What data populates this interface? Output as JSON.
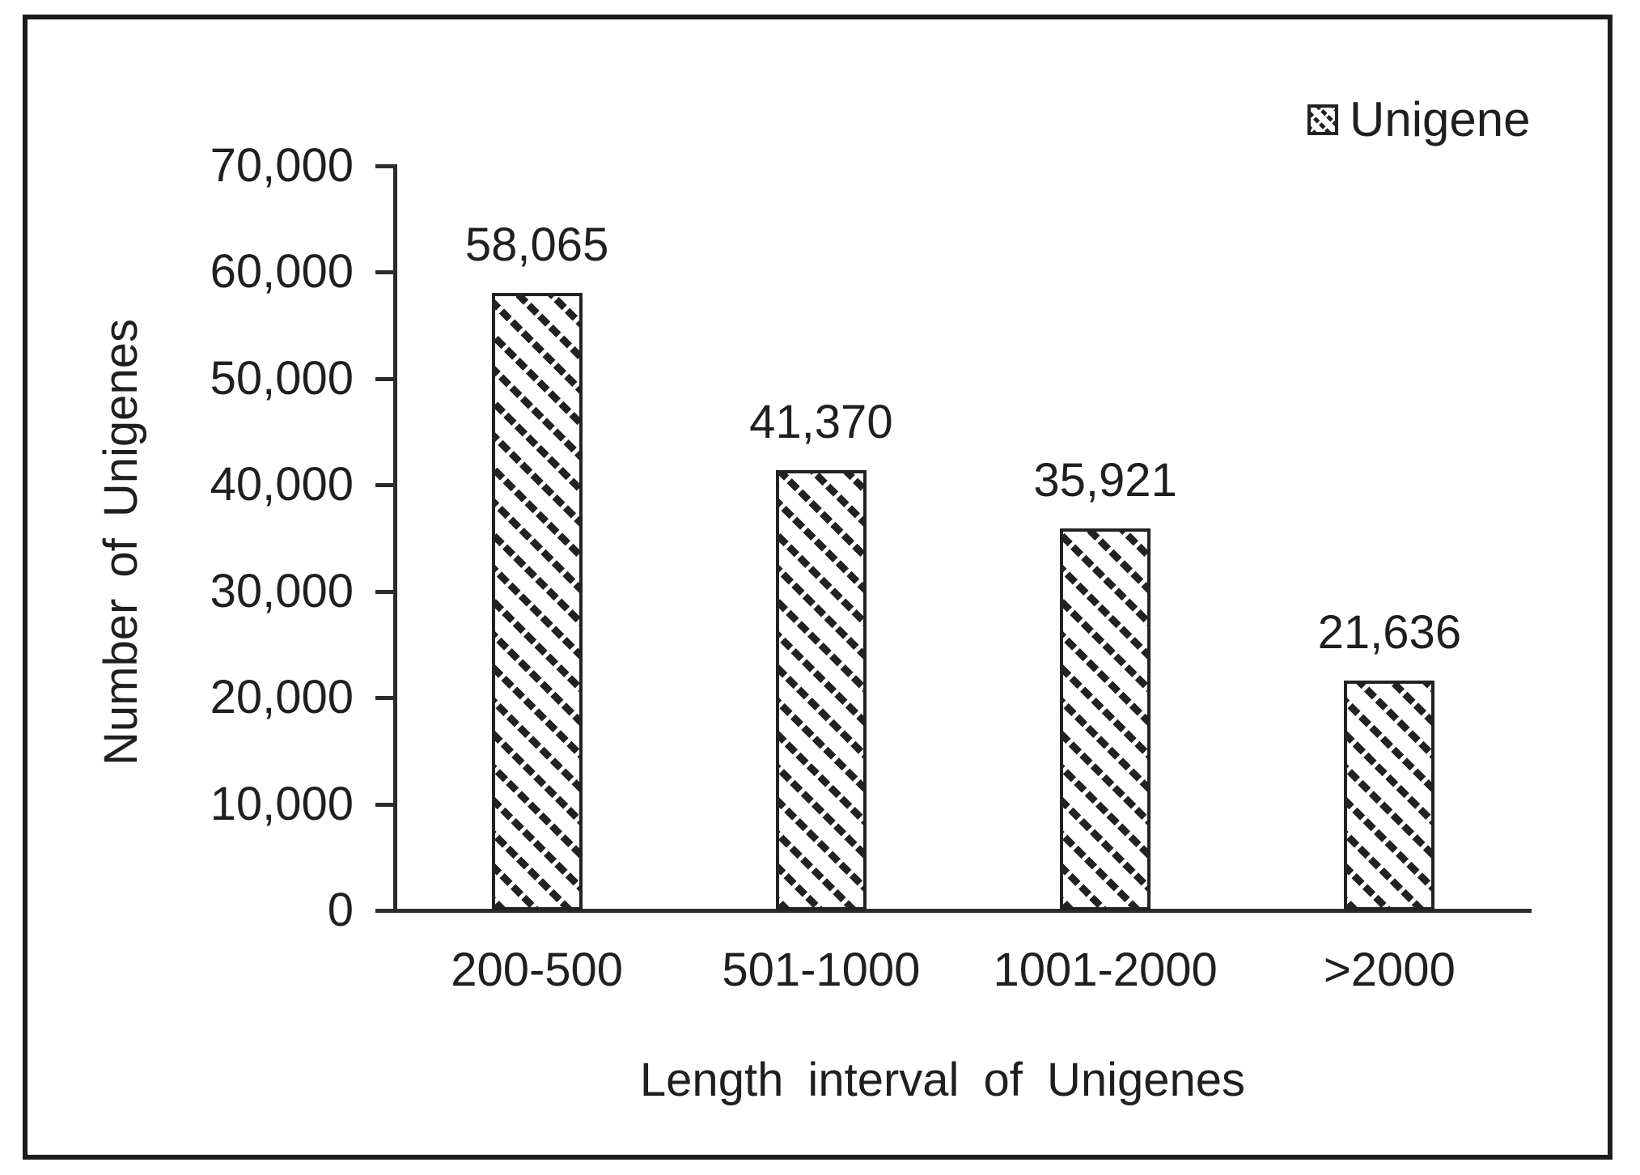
{
  "chart_data": {
    "type": "bar",
    "categories": [
      "200-500",
      "501-1000",
      "1001-2000",
      ">2000"
    ],
    "series": [
      {
        "name": "Unigene",
        "values": [
          58065,
          41370,
          35921,
          21636
        ]
      }
    ],
    "value_labels": [
      "58,065",
      "41,370",
      "35,921",
      "21,636"
    ],
    "xlabel": "Length interval  of Unigenes",
    "ylabel": "Number  of Unigenes",
    "ylim": [
      0,
      70000
    ],
    "ytick_step": 10000,
    "yticks": [
      "0",
      "10,000",
      "20,000",
      "30,000",
      "40,000",
      "50,000",
      "60,000",
      "70,000"
    ],
    "grid": false,
    "legend_position": "top-right",
    "bar_fill": "black-diagonal-hatch-on-white",
    "colors": {
      "ink": "#1f1f1f",
      "axis": "#2b2b2b",
      "background": "#ffffff"
    }
  }
}
